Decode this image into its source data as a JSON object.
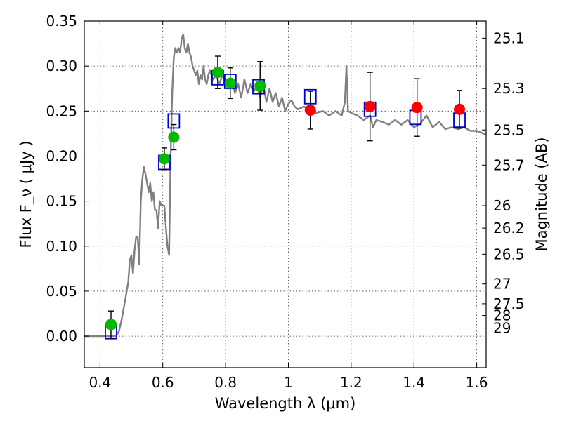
{
  "chart_data": {
    "type": "scatter",
    "xlabel": "Wavelength  λ (μm)",
    "ylabel": "Flux  F_ν  ( μJy )",
    "ylabel_right": "Magnitude (AB)",
    "xlim": [
      0.35,
      1.63
    ],
    "ylim": [
      -0.035,
      0.35
    ],
    "xticks": [
      0.4,
      0.6,
      0.8,
      1.0,
      1.2,
      1.4,
      1.6
    ],
    "xtick_labels": [
      "0.4",
      "0.6",
      "0.8",
      "1",
      "1.2",
      "1.4",
      "1.6"
    ],
    "yticks": [
      0.0,
      0.05,
      0.1,
      0.15,
      0.2,
      0.25,
      0.3,
      0.35
    ],
    "ytick_labels": [
      "0.00",
      "0.05",
      "0.10",
      "0.15",
      "0.20",
      "0.25",
      "0.30",
      "0.35"
    ],
    "right_ticks": [
      {
        "label": "25.1",
        "flux": 0.331
      },
      {
        "label": "25.3",
        "flux": 0.275
      },
      {
        "label": "25.5",
        "flux": 0.229
      },
      {
        "label": "25.7",
        "flux": 0.19
      },
      {
        "label": "26",
        "flux": 0.145
      },
      {
        "label": "26.2",
        "flux": 0.12
      },
      {
        "label": "26.5",
        "flux": 0.091
      },
      {
        "label": "27",
        "flux": 0.058
      },
      {
        "label": "27.5",
        "flux": 0.036
      },
      {
        "label": "28",
        "flux": 0.023
      },
      {
        "label": "29",
        "flux": 0.009
      }
    ],
    "grid": true,
    "colors": {
      "model": "#808080",
      "optical": "#00bb00",
      "infrared": "#ff0000",
      "box": "#0000cc"
    },
    "series": [
      {
        "kind": "line",
        "color": "#808080",
        "x": [
          0.35,
          0.45,
          0.46,
          0.47,
          0.48,
          0.49,
          0.495,
          0.5,
          0.505,
          0.51,
          0.515,
          0.52,
          0.525,
          0.53,
          0.535,
          0.54,
          0.545,
          0.55,
          0.555,
          0.56,
          0.565,
          0.57,
          0.575,
          0.58,
          0.585,
          0.59,
          0.595,
          0.6,
          0.605,
          0.61,
          0.615,
          0.62,
          0.625,
          0.63,
          0.635,
          0.64,
          0.645,
          0.65,
          0.655,
          0.66,
          0.665,
          0.67,
          0.675,
          0.68,
          0.685,
          0.69,
          0.695,
          0.7,
          0.705,
          0.71,
          0.715,
          0.72,
          0.725,
          0.73,
          0.735,
          0.74,
          0.745,
          0.75,
          0.76,
          0.77,
          0.78,
          0.79,
          0.8,
          0.81,
          0.82,
          0.83,
          0.84,
          0.85,
          0.86,
          0.87,
          0.88,
          0.89,
          0.9,
          0.91,
          0.92,
          0.93,
          0.94,
          0.95,
          0.96,
          0.97,
          0.98,
          0.99,
          1.0,
          1.01,
          1.02,
          1.03,
          1.05,
          1.07,
          1.09,
          1.11,
          1.13,
          1.15,
          1.17,
          1.18,
          1.185,
          1.19,
          1.2,
          1.22,
          1.24,
          1.26,
          1.27,
          1.28,
          1.3,
          1.32,
          1.34,
          1.36,
          1.38,
          1.4,
          1.42,
          1.44,
          1.46,
          1.48,
          1.5,
          1.52,
          1.54,
          1.56,
          1.58,
          1.6,
          1.63
        ],
        "y": [
          0.0,
          0.0,
          0.005,
          0.02,
          0.04,
          0.06,
          0.085,
          0.09,
          0.07,
          0.095,
          0.11,
          0.11,
          0.08,
          0.15,
          0.175,
          0.188,
          0.18,
          0.17,
          0.16,
          0.17,
          0.15,
          0.16,
          0.14,
          0.14,
          0.12,
          0.15,
          0.145,
          0.145,
          0.145,
          0.12,
          0.1,
          0.09,
          0.2,
          0.27,
          0.31,
          0.32,
          0.315,
          0.32,
          0.315,
          0.33,
          0.335,
          0.32,
          0.315,
          0.325,
          0.315,
          0.31,
          0.3,
          0.295,
          0.29,
          0.295,
          0.28,
          0.29,
          0.285,
          0.3,
          0.285,
          0.28,
          0.29,
          0.295,
          0.285,
          0.29,
          0.28,
          0.29,
          0.285,
          0.275,
          0.285,
          0.27,
          0.28,
          0.265,
          0.285,
          0.27,
          0.28,
          0.272,
          0.278,
          0.265,
          0.28,
          0.26,
          0.275,
          0.26,
          0.27,
          0.255,
          0.265,
          0.25,
          0.258,
          0.262,
          0.255,
          0.252,
          0.255,
          0.25,
          0.248,
          0.25,
          0.245,
          0.25,
          0.245,
          0.26,
          0.3,
          0.25,
          0.248,
          0.245,
          0.24,
          0.245,
          0.232,
          0.24,
          0.238,
          0.235,
          0.24,
          0.235,
          0.24,
          0.232,
          0.236,
          0.245,
          0.232,
          0.238,
          0.23,
          0.232,
          0.23,
          0.232,
          0.228,
          0.228,
          0.224
        ]
      },
      {
        "kind": "squares",
        "color": "#0000cc",
        "x": [
          0.435,
          0.605,
          0.635,
          0.775,
          0.815,
          0.905,
          1.07,
          1.26,
          1.405,
          1.545
        ],
        "y": [
          0.005,
          0.193,
          0.239,
          0.287,
          0.283,
          0.277,
          0.266,
          0.252,
          0.243,
          0.24
        ]
      },
      {
        "kind": "points",
        "color": "#00bb00",
        "x": [
          0.435,
          0.605,
          0.635,
          0.775,
          0.815,
          0.91
        ],
        "y": [
          0.013,
          0.197,
          0.221,
          0.293,
          0.281,
          0.278
        ],
        "err": [
          0.015,
          0.012,
          0.014,
          0.018,
          0.017,
          0.027
        ]
      },
      {
        "kind": "points",
        "color": "#ff0000",
        "x": [
          1.07,
          1.26,
          1.41,
          1.545
        ],
        "y": [
          0.251,
          0.255,
          0.254,
          0.252
        ],
        "err": [
          0.021,
          0.038,
          0.032,
          0.021
        ]
      }
    ]
  }
}
